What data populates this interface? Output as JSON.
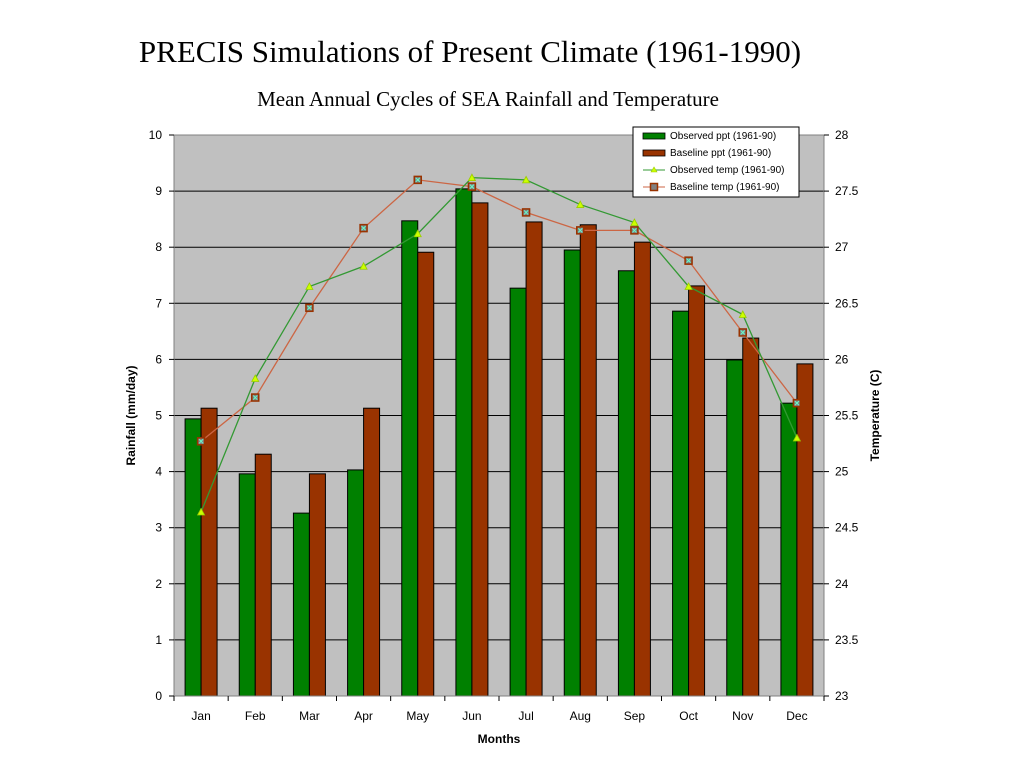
{
  "page": {
    "title": "PRECIS Simulations of Present Climate (1961-1990)",
    "subtitle": "Mean Annual Cycles of SEA Rainfall and Temperature"
  },
  "colors": {
    "plot_bg": "#c0c0c0",
    "observed_ppt": "#008000",
    "baseline_ppt": "#993300",
    "observed_temp_line": "#339933",
    "observed_temp_marker": "#ccff00",
    "baseline_temp_line": "#cc6644",
    "baseline_temp_marker": "#993300"
  },
  "chart_data": {
    "type": "bar",
    "title": "Mean Annual Cycles of SEA Rainfall and Temperature",
    "xlabel": "Months",
    "ylabel": "Rainfall (mm/day)",
    "y2label": "Temperature (C)",
    "categories": [
      "Jan",
      "Feb",
      "Mar",
      "Apr",
      "May",
      "Jun",
      "Jul",
      "Aug",
      "Sep",
      "Oct",
      "Nov",
      "Dec"
    ],
    "ylim": [
      0,
      10
    ],
    "yticks": [
      "0",
      "1",
      "2",
      "3",
      "4",
      "5",
      "6",
      "7",
      "8",
      "9",
      "10"
    ],
    "y2lim": [
      23,
      28
    ],
    "y2ticks": [
      "23",
      "23.5",
      "24",
      "24.5",
      "25",
      "25.5",
      "26",
      "26.5",
      "27",
      "27.5",
      "28"
    ],
    "grid": true,
    "legend_position": "top-right",
    "series": [
      {
        "name": "Observed ppt (1961-90)",
        "type": "bar",
        "axis": "left",
        "values": [
          4.94,
          3.96,
          3.26,
          4.03,
          8.47,
          9.04,
          7.27,
          7.95,
          7.58,
          6.86,
          5.99,
          5.22
        ]
      },
      {
        "name": "Baseline ppt (1961-90)",
        "type": "bar",
        "axis": "left",
        "values": [
          5.13,
          4.31,
          3.96,
          5.13,
          7.91,
          8.79,
          8.45,
          8.4,
          8.09,
          7.31,
          6.38,
          5.92
        ]
      },
      {
        "name": "Observed temp (1961-90)",
        "type": "line",
        "axis": "right",
        "values": [
          24.64,
          25.83,
          26.65,
          26.83,
          27.12,
          27.62,
          27.6,
          27.38,
          27.22,
          26.65,
          26.4,
          25.3
        ]
      },
      {
        "name": "Baseline temp (1961-90)",
        "type": "line",
        "axis": "right",
        "values": [
          25.27,
          25.66,
          26.46,
          27.17,
          27.6,
          27.54,
          27.31,
          27.15,
          27.15,
          26.88,
          26.24,
          25.61
        ]
      }
    ]
  }
}
